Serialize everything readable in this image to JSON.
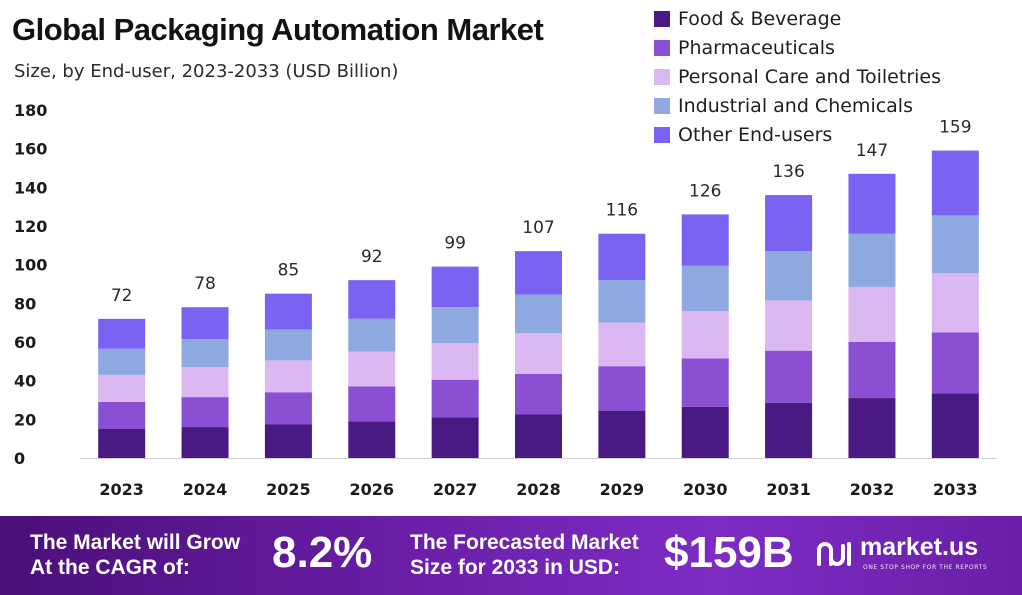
{
  "colors": {
    "food": "#4a1a84",
    "pharma": "#8a4fd3",
    "personal": "#dcb8f2",
    "industrial": "#8ea8e0",
    "other": "#7b63f2",
    "banner": "#6a1ea8"
  },
  "chart_data": {
    "type": "bar",
    "stacked": true,
    "title": "Global Packaging Automation Market",
    "subtitle": "Size, by End-user, 2023-2033 (USD Billion)",
    "categories": [
      "2023",
      "2024",
      "2025",
      "2026",
      "2027",
      "2028",
      "2029",
      "2030",
      "2031",
      "2032",
      "2033"
    ],
    "series": [
      {
        "name": "Food & Beverage",
        "color": "#4a1a84",
        "values": [
          15,
          16,
          17.5,
          19,
          21,
          22.5,
          24.5,
          26.5,
          28.5,
          31,
          33.5
        ]
      },
      {
        "name": "Pharmaceuticals",
        "color": "#8a4fd3",
        "values": [
          14,
          15.5,
          16.5,
          18,
          19.5,
          21,
          23,
          25,
          27,
          29,
          31.5
        ]
      },
      {
        "name": "Personal Care and Toiletries",
        "color": "#dcb8f2",
        "values": [
          14,
          15.5,
          16.5,
          18,
          19,
          21,
          22.5,
          24.5,
          26,
          28.5,
          30.5
        ]
      },
      {
        "name": "Industrial and Chemicals",
        "color": "#8ea8e0",
        "values": [
          13.5,
          14.5,
          16,
          17,
          18.5,
          20,
          22,
          23.5,
          25.5,
          27.5,
          30
        ]
      },
      {
        "name": "Other End-users",
        "color": "#7b63f2",
        "values": [
          15.5,
          16.5,
          18.5,
          20,
          21,
          22.5,
          24,
          26.5,
          29,
          31,
          33.5
        ]
      }
    ],
    "totals": [
      72,
      78,
      85,
      92,
      99,
      107,
      116,
      126,
      136,
      147,
      159
    ],
    "yticks": [
      0,
      20,
      40,
      60,
      80,
      100,
      120,
      140,
      160,
      180
    ],
    "ylim": [
      0,
      180
    ],
    "xlabel": "",
    "ylabel": "",
    "grid": false,
    "legend_position": "top-right"
  },
  "banner": {
    "cagr_text_line1": "The Market will Grow",
    "cagr_text_line2": "At the CAGR of:",
    "cagr_value": "8.2%",
    "forecast_text_line1": "The Forecasted Market",
    "forecast_text_line2": "Size for 2033 in USD:",
    "forecast_value": "$159B",
    "logo_name": "market.us",
    "logo_tagline": "ONE STOP SHOP FOR THE REPORTS"
  }
}
